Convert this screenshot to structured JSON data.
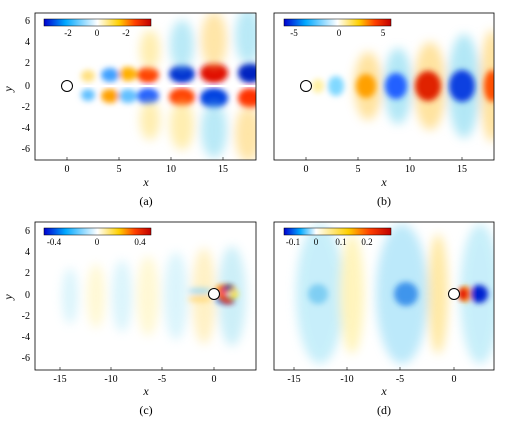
{
  "figure": {
    "panels": [
      {
        "id": "a",
        "caption": "(a)",
        "xlabel": "x",
        "ylabel": "y",
        "xticks": [
          "0",
          "5",
          "10",
          "15"
        ],
        "yticks": [
          "6",
          "4",
          "2",
          "0",
          "-2",
          "-4",
          "-6"
        ],
        "colorbar_ticks": [
          "-2",
          "0",
          "-2"
        ],
        "colorbar_colors": [
          "#0000d0",
          "#00a8ff",
          "#ffffff",
          "#ffd000",
          "#ff4000",
          "#c00000"
        ]
      },
      {
        "id": "b",
        "caption": "(b)",
        "xlabel": "x",
        "ylabel": "",
        "xticks": [
          "0",
          "5",
          "10",
          "15"
        ],
        "yticks": [],
        "colorbar_ticks": [
          "-5",
          "0",
          "5"
        ],
        "colorbar_colors": [
          "#0000d0",
          "#00a8ff",
          "#ffffff",
          "#ffd000",
          "#ff4000",
          "#c00000"
        ]
      },
      {
        "id": "c",
        "caption": "(c)",
        "xlabel": "x",
        "ylabel": "y",
        "xticks": [
          "-15",
          "-10",
          "-5",
          "0"
        ],
        "yticks": [
          "6",
          "4",
          "2",
          "0",
          "-2",
          "-4",
          "-6"
        ],
        "colorbar_ticks": [
          "-0.4",
          "0",
          "0.4"
        ],
        "colorbar_colors": [
          "#0000d0",
          "#00a8ff",
          "#ffffff",
          "#ffd000",
          "#ff4000",
          "#c00000"
        ]
      },
      {
        "id": "d",
        "caption": "(d)",
        "xlabel": "x",
        "ylabel": "",
        "xticks": [
          "-15",
          "-10",
          "-5",
          "0"
        ],
        "yticks": [],
        "colorbar_ticks": [
          "-0.1",
          "0",
          "0.1",
          "0.2"
        ],
        "colorbar_colors": [
          "#0000d0",
          "#00a8ff",
          "#ffffff",
          "#ffd000",
          "#ff4000",
          "#c00000"
        ]
      }
    ],
    "colors": {
      "positive_strong": "#c00000",
      "positive": "#ff5a00",
      "positive_weak": "#ffd040",
      "negative_strong": "#0010c0",
      "negative": "#1060ff",
      "negative_weak": "#80d8f0"
    }
  }
}
